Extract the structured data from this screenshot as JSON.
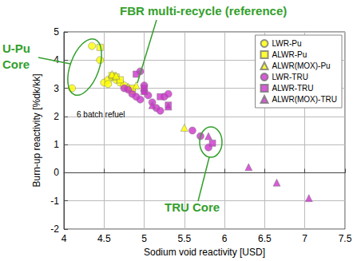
{
  "chart_data": {
    "type": "scatter",
    "xlabel": "Sodium void reactivity [USD]",
    "ylabel": "Burn-up reactivity [%dk/kk]",
    "xlim": [
      4,
      7.5
    ],
    "xticks": [
      4,
      4.5,
      5,
      5.5,
      6,
      6.5,
      7,
      7.5
    ],
    "ylim": [
      -2,
      5
    ],
    "yticks": [
      -2,
      -1,
      0,
      1,
      2,
      3,
      4,
      5
    ],
    "grid": true,
    "legend": "upper right",
    "series": [
      {
        "name": "LWR-Pu",
        "color": "#ffff00",
        "marker": "circle",
        "x": [
          4.1,
          4.35,
          4.45,
          4.5,
          4.55,
          4.6,
          4.65,
          4.7,
          4.75,
          4.8,
          4.85,
          4.55
        ],
        "values": [
          3.0,
          4.5,
          4.0,
          3.2,
          3.3,
          3.4,
          3.3,
          3.2,
          3.1,
          3.0,
          2.9,
          3.15
        ]
      },
      {
        "name": "ALWR-Pu",
        "color": "#ffff00",
        "marker": "square",
        "x": [
          4.45,
          4.6,
          4.65,
          4.7,
          4.85
        ],
        "values": [
          4.45,
          3.45,
          3.4,
          3.3,
          3.0
        ]
      },
      {
        "name": "ALWR(MOX)-Pu",
        "color": "#ffff00",
        "marker": "triangle",
        "x": [
          4.6,
          4.65,
          4.8,
          4.9,
          5.5
        ],
        "values": [
          3.5,
          3.45,
          3.05,
          3.1,
          1.6
        ]
      },
      {
        "name": "LWR-TRU",
        "color": "#cc33cc",
        "marker": "circle",
        "x": [
          4.75,
          4.8,
          4.85,
          4.9,
          4.95,
          5.0,
          5.05,
          5.1,
          5.15,
          5.2,
          4.95,
          5.0,
          5.6,
          5.8,
          5.7,
          5.25,
          5.3
        ],
        "values": [
          3.0,
          2.95,
          2.8,
          2.7,
          2.6,
          2.9,
          2.75,
          2.5,
          2.3,
          2.2,
          3.6,
          3.1,
          1.5,
          0.9,
          1.3,
          2.7,
          2.8
        ]
      },
      {
        "name": "ALWR-TRU",
        "color": "#cc33cc",
        "marker": "square",
        "x": [
          4.9,
          5.0,
          5.2,
          5.3,
          5.85
        ],
        "values": [
          3.5,
          3.0,
          2.7,
          2.4,
          1.05
        ]
      },
      {
        "name": "ALWR(MOX)-TRU",
        "color": "#cc33cc",
        "marker": "triangle",
        "x": [
          5.0,
          5.1,
          5.3,
          5.8,
          6.3,
          6.65,
          7.05
        ],
        "values": [
          2.9,
          2.4,
          2.35,
          1.3,
          0.2,
          -0.35,
          -0.9
        ]
      }
    ],
    "annotations": [
      "U-Pu Core",
      "FBR multi-recycle (reference)",
      "TRU Core",
      "6 batch refuel"
    ]
  }
}
